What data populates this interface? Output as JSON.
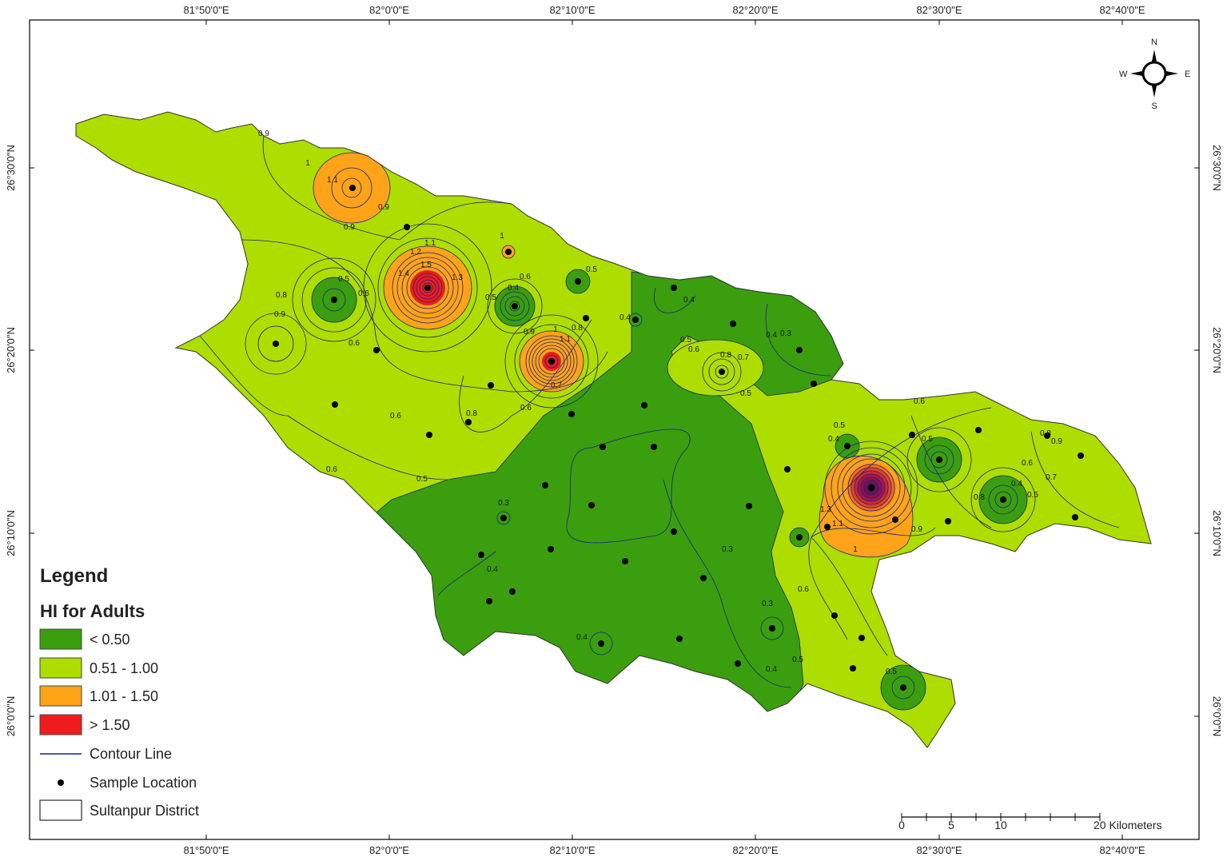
{
  "map": {
    "lon_labels": [
      "81°50'0\"E",
      "82°0'0\"E",
      "82°10'0\"E",
      "82°20'0\"E",
      "82°30'0\"E",
      "82°40'0\"E"
    ],
    "lat_labels": [
      "26°30'0\"N",
      "26°20'0\"N",
      "26°10'0\"N",
      "26°0'0\"N"
    ],
    "compass": {
      "n": "N",
      "e": "E",
      "s": "S",
      "w": "W"
    },
    "class_colors": [
      "#3a9e0e",
      "#aedd00",
      "#ffa319",
      "#ee1c1c"
    ],
    "legend": {
      "title": "Legend",
      "subtitle": "HI for Adults",
      "items": [
        "< 0.50",
        "0.51 - 1.00",
        "1.01 - 1.50",
        "> 1.50",
        "Contour Line",
        "Sample Location",
        "Sultanpur District"
      ]
    },
    "scale_bar": [
      "0",
      "5",
      "10",
      "20 Kilometers"
    ],
    "contour_labels": [
      "0.9",
      "1",
      "1.1",
      "0.9",
      "0.9",
      "1.2",
      "1.1",
      "1.5",
      "1.4",
      "1.3",
      "1",
      "0.5",
      "0.6",
      "0.8",
      "0.9",
      "0.6",
      "0.4",
      "0.5",
      "0.6",
      "0.5",
      "0.9",
      "1",
      "1.1",
      "0.8",
      "0.7",
      "0.6",
      "0.8",
      "0.6",
      "0.5",
      "0.6",
      "0.4",
      "0.4",
      "0.5",
      "0.6",
      "0.8",
      "0.7",
      "0.5",
      "0.4",
      "0.3",
      "0.3",
      "0.4",
      "0.3",
      "0.3",
      "0.4",
      "0.4",
      "0.5",
      "0.6",
      "1",
      "1.3",
      "1.1",
      "0.5",
      "0.4",
      "0.5",
      "0.6",
      "0.9",
      "0.8",
      "0.4",
      "0.5",
      "0.6",
      "0.7",
      "0.9",
      "0.8",
      "0.5"
    ]
  }
}
